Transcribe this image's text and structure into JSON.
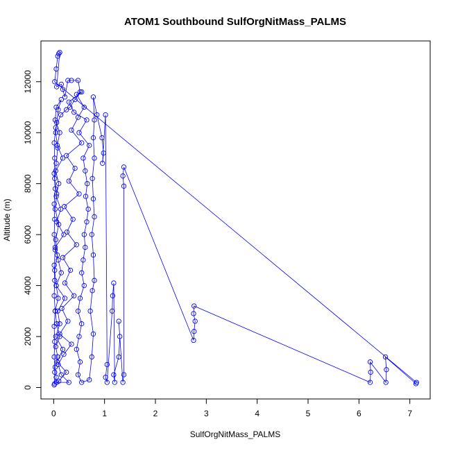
{
  "chart_data": {
    "type": "scatter",
    "title": "ATOM1 Southbound SulfOrgNitMass_PALMS",
    "xlabel": "SulfOrgNitMass_PALMS",
    "ylabel": "Altitude (m)",
    "xlim": [
      -0.25,
      7.4
    ],
    "ylim": [
      -450,
      13600
    ],
    "xticks": [
      0,
      1,
      2,
      3,
      4,
      5,
      6,
      7
    ],
    "yticks": [
      0,
      2000,
      4000,
      6000,
      8000,
      10000,
      12000
    ],
    "xtick_labels": [
      "0",
      "1",
      "2",
      "3",
      "4",
      "5",
      "6",
      "7"
    ],
    "ytick_labels": [
      "0",
      "2000",
      "4000",
      "6000",
      "8000",
      "10000",
      "12000"
    ],
    "grid": false,
    "legend": "none",
    "marker": "open-circle",
    "connected": true,
    "color": "#0000ff",
    "points": [
      [
        0.02,
        150
      ],
      [
        0.05,
        400
      ],
      [
        0.03,
        800
      ],
      [
        0.08,
        1200
      ],
      [
        0.04,
        1600
      ],
      [
        0.12,
        2000
      ],
      [
        0.06,
        2500
      ],
      [
        0.03,
        3000
      ],
      [
        0.09,
        3500
      ],
      [
        0.05,
        4000
      ],
      [
        0.02,
        4600
      ],
      [
        0.07,
        5200
      ],
      [
        0.04,
        5800
      ],
      [
        0.1,
        6400
      ],
      [
        0.03,
        7000
      ],
      [
        0.06,
        7600
      ],
      [
        0.02,
        8200
      ],
      [
        0.05,
        8800
      ],
      [
        0.08,
        9400
      ],
      [
        0.04,
        10000
      ],
      [
        0.06,
        10400
      ],
      [
        0.09,
        10900
      ],
      [
        0.15,
        11300
      ],
      [
        0.05,
        11000
      ],
      [
        0.03,
        10500
      ],
      [
        0.12,
        10000
      ],
      [
        0.07,
        9500
      ],
      [
        0.18,
        9000
      ],
      [
        0.04,
        8500
      ],
      [
        0.1,
        8000
      ],
      [
        0.05,
        7500
      ],
      [
        0.14,
        7000
      ],
      [
        0.06,
        6500
      ],
      [
        0.2,
        6000
      ],
      [
        0.03,
        5500
      ],
      [
        0.09,
        5000
      ],
      [
        0.15,
        4500
      ],
      [
        0.05,
        4000
      ],
      [
        0.22,
        3500
      ],
      [
        0.08,
        3000
      ],
      [
        0.12,
        2500
      ],
      [
        0.04,
        2000
      ],
      [
        0.18,
        1500
      ],
      [
        0.07,
        1000
      ],
      [
        0.25,
        600
      ],
      [
        0.1,
        250
      ],
      [
        0.06,
        200
      ],
      [
        0.3,
        200
      ],
      [
        0.15,
        500
      ],
      [
        0.09,
        900
      ],
      [
        0.2,
        1300
      ],
      [
        0.35,
        1700
      ],
      [
        0.12,
        2100
      ],
      [
        0.28,
        2600
      ],
      [
        0.16,
        3100
      ],
      [
        0.4,
        3600
      ],
      [
        0.22,
        4100
      ],
      [
        0.33,
        4600
      ],
      [
        0.18,
        5100
      ],
      [
        0.45,
        5600
      ],
      [
        0.26,
        6100
      ],
      [
        0.38,
        6600
      ],
      [
        0.21,
        7100
      ],
      [
        0.5,
        7600
      ],
      [
        0.3,
        8100
      ],
      [
        0.42,
        8600
      ],
      [
        0.25,
        9100
      ],
      [
        0.55,
        9600
      ],
      [
        0.35,
        10100
      ],
      [
        0.48,
        10600
      ],
      [
        0.6,
        11000
      ],
      [
        0.45,
        11500
      ],
      [
        0.55,
        11600
      ],
      [
        0.3,
        11200
      ],
      [
        0.4,
        10800
      ],
      [
        0.65,
        10500
      ],
      [
        0.5,
        10000
      ],
      [
        0.7,
        9500
      ],
      [
        0.58,
        9000
      ],
      [
        0.62,
        8500
      ],
      [
        0.66,
        8000
      ],
      [
        0.63,
        7500
      ],
      [
        0.68,
        7000
      ],
      [
        0.65,
        6500
      ],
      [
        0.6,
        6000
      ],
      [
        0.62,
        5500
      ],
      [
        0.58,
        5000
      ],
      [
        0.55,
        4500
      ],
      [
        0.6,
        4000
      ],
      [
        0.52,
        3500
      ],
      [
        0.48,
        3000
      ],
      [
        0.55,
        2500
      ],
      [
        0.5,
        2000
      ],
      [
        0.45,
        1500
      ],
      [
        0.52,
        1000
      ],
      [
        0.48,
        500
      ],
      [
        0.55,
        200
      ],
      [
        0.7,
        300
      ],
      [
        0.75,
        1200
      ],
      [
        0.78,
        2100
      ],
      [
        0.72,
        3000
      ],
      [
        0.76,
        3800
      ],
      [
        0.8,
        4200
      ],
      [
        0.78,
        5200
      ],
      [
        0.75,
        6000
      ],
      [
        0.8,
        6700
      ],
      [
        0.78,
        7400
      ],
      [
        0.76,
        8200
      ],
      [
        0.8,
        9000
      ],
      [
        0.78,
        9800
      ],
      [
        0.8,
        10500
      ],
      [
        0.78,
        11400
      ],
      [
        0.85,
        10700
      ],
      [
        0.95,
        9800
      ],
      [
        0.98,
        9200
      ],
      [
        0.96,
        8800
      ],
      [
        1.02,
        10700
      ],
      [
        1.05,
        900
      ],
      [
        1.02,
        400
      ],
      [
        1.05,
        200
      ],
      [
        1.15,
        3000
      ],
      [
        1.16,
        3600
      ],
      [
        1.18,
        4100
      ],
      [
        1.2,
        200
      ],
      [
        1.18,
        500
      ],
      [
        1.28,
        1200
      ],
      [
        1.3,
        2000
      ],
      [
        1.28,
        2600
      ],
      [
        1.36,
        200
      ],
      [
        1.38,
        500
      ],
      [
        1.38,
        7900
      ],
      [
        1.36,
        8300
      ],
      [
        1.38,
        8650
      ],
      [
        2.75,
        1850
      ],
      [
        2.76,
        2200
      ],
      [
        2.78,
        2600
      ],
      [
        2.75,
        2900
      ],
      [
        2.76,
        3200
      ],
      [
        6.22,
        200
      ],
      [
        6.23,
        600
      ],
      [
        6.22,
        1000
      ],
      [
        6.53,
        200
      ],
      [
        6.54,
        700
      ],
      [
        6.52,
        1200
      ],
      [
        7.12,
        150
      ],
      [
        7.13,
        200
      ],
      [
        0.02,
        12000
      ],
      [
        0.05,
        12500
      ],
      [
        0.08,
        13000
      ],
      [
        0.1,
        13100
      ],
      [
        0.12,
        13150
      ],
      [
        0.06,
        11800
      ],
      [
        0.15,
        11900
      ],
      [
        0.18,
        11700
      ],
      [
        0.22,
        11400
      ],
      [
        0.28,
        12050
      ],
      [
        0.35,
        12050
      ],
      [
        0.48,
        12050
      ],
      [
        0.52,
        11600
      ],
      [
        0.42,
        11300
      ],
      [
        0.32,
        11000
      ],
      [
        0.25,
        10900
      ],
      [
        0.14,
        10700
      ],
      [
        0.04,
        10200
      ],
      [
        0.01,
        9600
      ],
      [
        0.02,
        9000
      ],
      [
        0.01,
        8400
      ],
      [
        0.03,
        7800
      ],
      [
        0.01,
        7200
      ],
      [
        0.02,
        6600
      ],
      [
        0.01,
        6000
      ],
      [
        0.03,
        5400
      ],
      [
        0.01,
        4800
      ],
      [
        0.02,
        4200
      ],
      [
        0.01,
        3600
      ],
      [
        0.03,
        3000
      ],
      [
        0.01,
        2400
      ],
      [
        0.02,
        1800
      ],
      [
        0.01,
        1200
      ],
      [
        0.02,
        600
      ],
      [
        0.01,
        100
      ]
    ]
  }
}
